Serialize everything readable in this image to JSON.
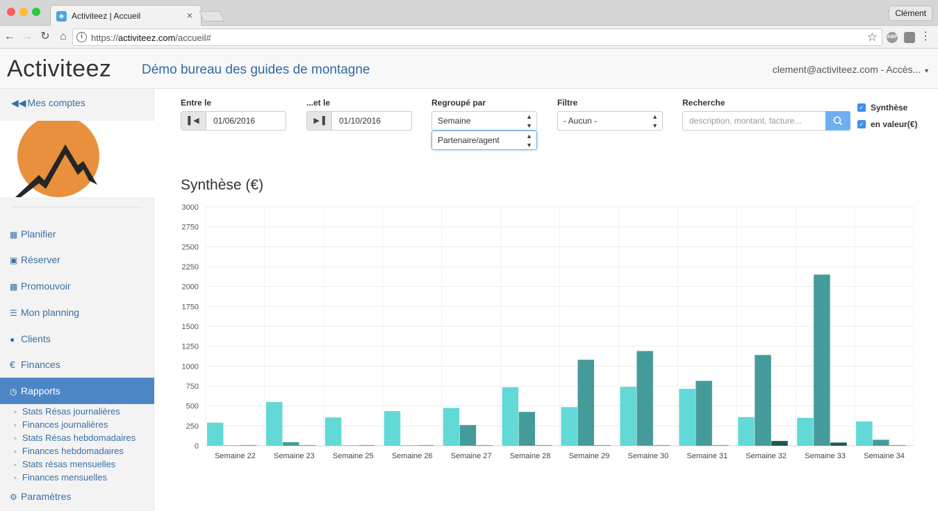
{
  "browser": {
    "tab_title": "Activiteez | Accueil",
    "tab_close": "×",
    "user": "Clément",
    "url_prefix": "https://",
    "url_domain": "activiteez.com",
    "url_path": "/accueil#",
    "ext_label": "ABP"
  },
  "header": {
    "brand": "Activiteez",
    "organization": "Démo bureau des guides de montagne",
    "account": "clement@activiteez.com - Accès..."
  },
  "sidebar": {
    "back_label": "Mes comptes",
    "items": [
      {
        "label": "Planifier",
        "icon": "calendar-icon"
      },
      {
        "label": "Réserver",
        "icon": "cart-icon"
      },
      {
        "label": "Promouvoir",
        "icon": "comment-icon"
      },
      {
        "label": "Mon planning",
        "icon": "tasks-icon"
      },
      {
        "label": "Clients",
        "icon": "user-icon"
      },
      {
        "label": "Finances",
        "icon": "euro-icon"
      },
      {
        "label": "Rapports",
        "icon": "clock-icon"
      },
      {
        "label": "Paramètres",
        "icon": "gear-icon"
      }
    ],
    "subitems": [
      "Stats Résas journalières",
      "Finances journalières",
      "Stats Résas hebdomadaires",
      "Finances hebdomadaires",
      "Stats résas mensuelles",
      "Finances mensuelles"
    ]
  },
  "filters": {
    "start_label": "Entre le",
    "start_value": "01/06/2016",
    "end_label": "...et le",
    "end_value": "01/10/2016",
    "group_label": "Regroupé par",
    "group_value": "Semaine",
    "group_value_2": "Partenaire/agent",
    "filter_label": "Filtre",
    "filter_value": "- Aucun -",
    "search_label": "Recherche",
    "search_placeholder": "description, montant, facture...",
    "check_synthese": "Synthèse",
    "check_valeur": "en valeur(€)"
  },
  "colors": {
    "series1": "#62d9d6",
    "series2": "#459b9a",
    "series3": "#1f5755",
    "accent": "#4d86c5"
  },
  "chart_data": {
    "type": "bar",
    "title": "Synthèse (€)",
    "xlabel": "",
    "ylabel": "",
    "ylim": [
      0,
      3000
    ],
    "yticks": [
      0,
      250,
      500,
      750,
      1000,
      1250,
      1500,
      1750,
      2000,
      2250,
      2500,
      2750,
      3000
    ],
    "grid": true,
    "legend": "none",
    "categories": [
      "Semaine 22",
      "Semaine 23",
      "Semaine 25",
      "Semaine 26",
      "Semaine 27",
      "Semaine 28",
      "Semaine 29",
      "Semaine 30",
      "Semaine 31",
      "Semaine 32",
      "Semaine 33",
      "Semaine 34"
    ],
    "series": [
      {
        "values": [
          290,
          550,
          355,
          435,
          475,
          735,
          485,
          740,
          715,
          360,
          350,
          305
        ]
      },
      {
        "values": [
          5,
          45,
          5,
          5,
          260,
          425,
          1080,
          1190,
          815,
          1140,
          2150,
          75
        ]
      },
      {
        "values": [
          5,
          5,
          5,
          5,
          5,
          5,
          5,
          5,
          5,
          60,
          40,
          5
        ]
      }
    ]
  }
}
